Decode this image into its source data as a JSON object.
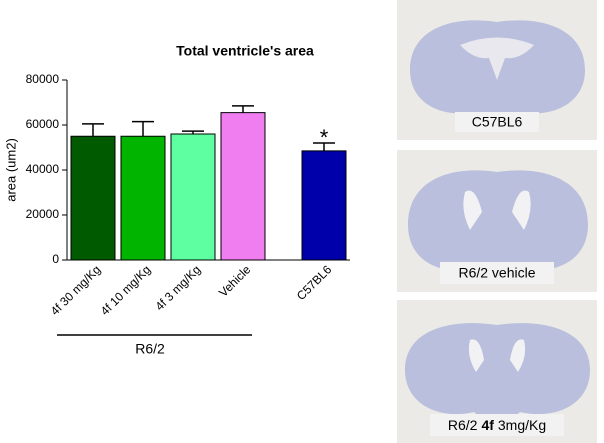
{
  "chart_data": {
    "type": "bar",
    "title": "Total ventricle's area",
    "ylabel": "area (um2)",
    "categories": [
      "4f 30 mg/Kg",
      "4f 10 mg/Kg",
      "4f 3 mg/Kg",
      "Vehicle",
      "C57BL6"
    ],
    "values": [
      55000,
      55000,
      56000,
      65500,
      48500
    ],
    "errors": [
      5500,
      6500,
      1300,
      3000,
      3500
    ],
    "colors": [
      "#005a00",
      "#00b400",
      "#5effa0",
      "#f07ef0",
      "#0000aa"
    ],
    "ylim": [
      0,
      80000
    ],
    "yticks": [
      0,
      20000,
      40000,
      60000,
      80000
    ],
    "annotations": [
      {
        "text": "*",
        "category": "C57BL6"
      }
    ],
    "group": {
      "label": "R6/2",
      "count": 4
    }
  },
  "panels": [
    {
      "label": "C57BL6"
    },
    {
      "label": "R6/2 vehicle"
    },
    {
      "label_parts": [
        "R6/2",
        "4f",
        "3mg/Kg"
      ]
    }
  ]
}
